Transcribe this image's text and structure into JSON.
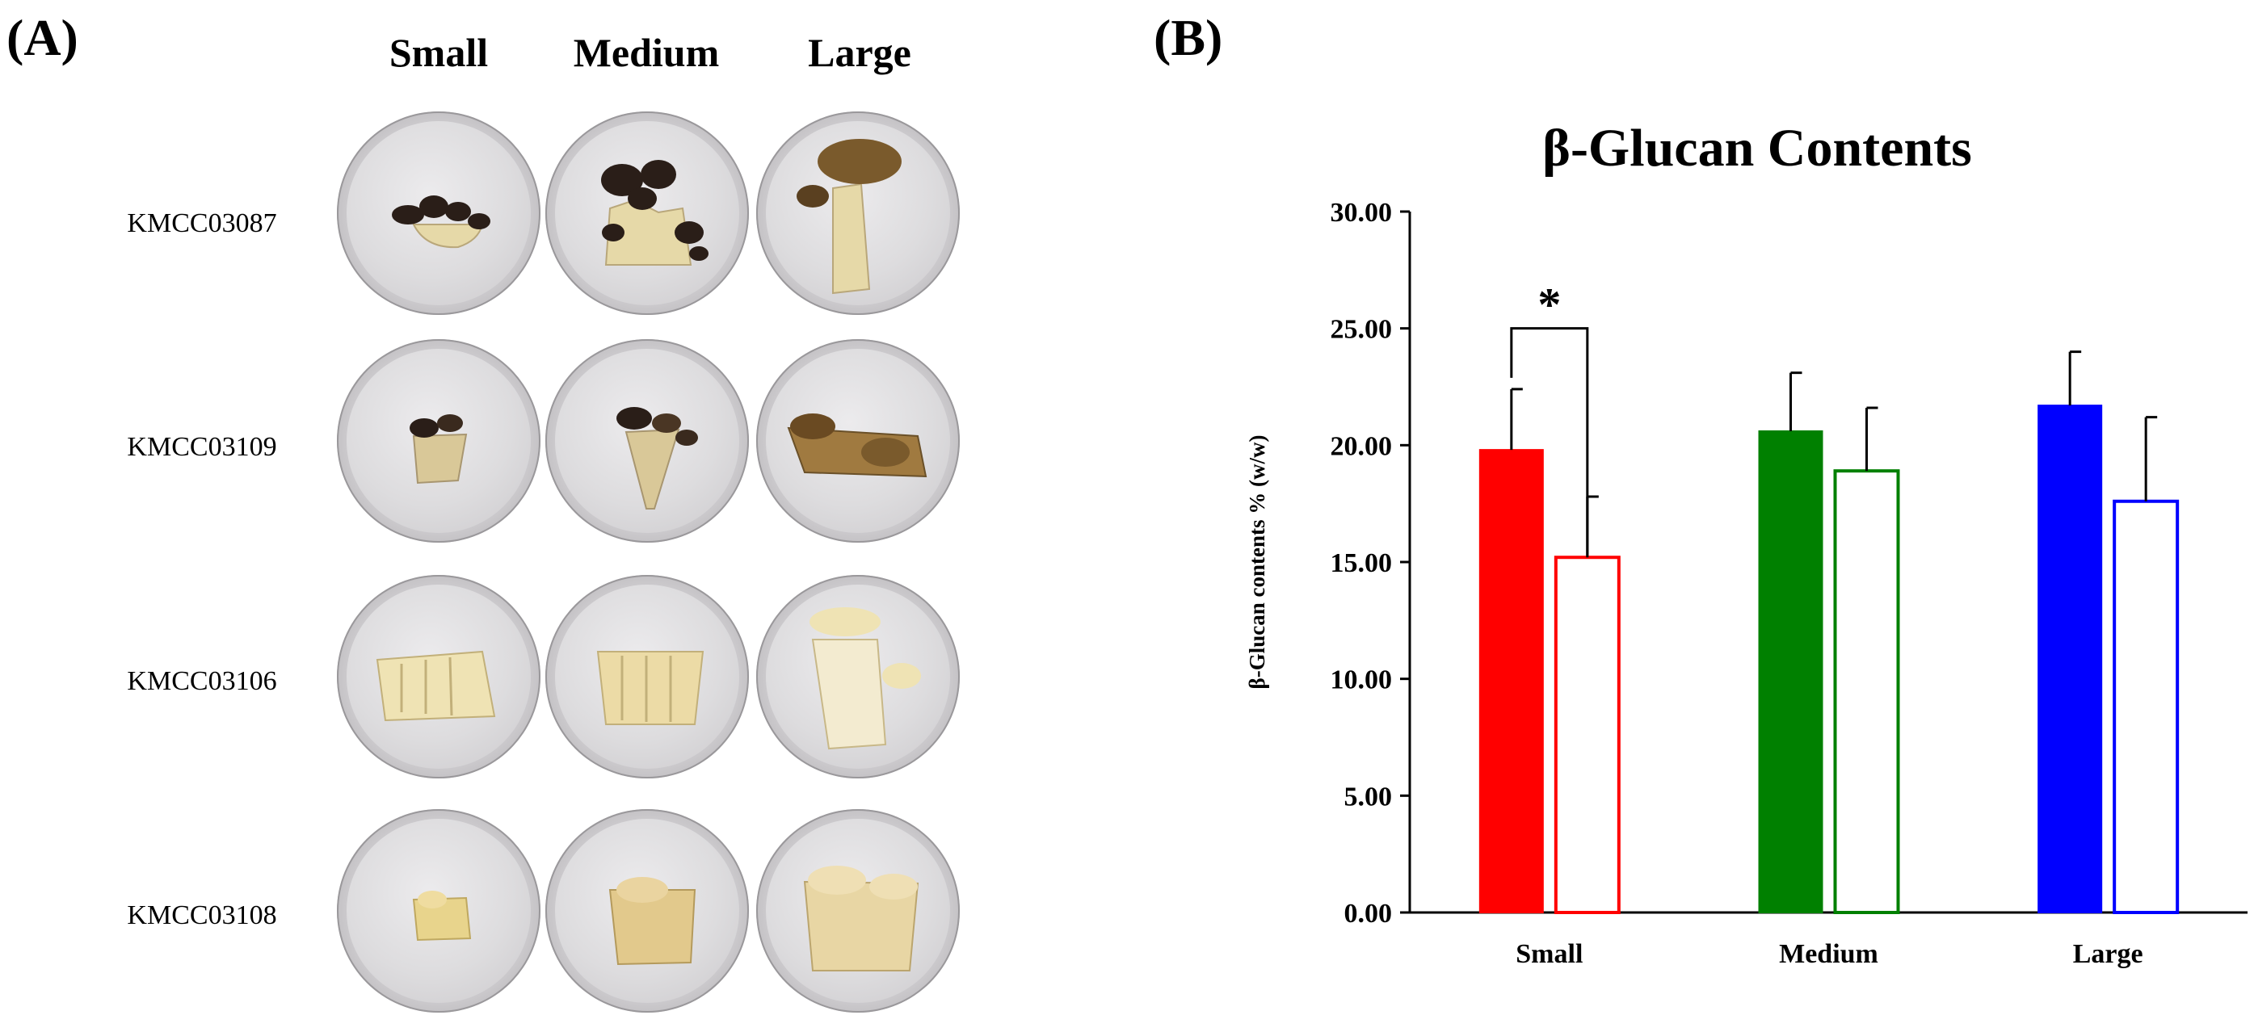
{
  "panels": {
    "a_label": "(A)",
    "b_label": "(B)"
  },
  "photo_grid": {
    "columns": [
      "Small",
      "Medium",
      "Large"
    ],
    "rows": [
      "KMCC03087",
      "KMCC03109",
      "KMCC03106",
      "KMCC03108"
    ],
    "specimen_colors": {
      "dark_cap": "#2a1e18",
      "brown_cap": "#7a5a2c",
      "stem_cream": "#e6d9a8",
      "pale_cream": "#efe3b4",
      "yellow_cream": "#e8d48c"
    }
  },
  "chart_data": {
    "type": "bar",
    "title": "β-Glucan Contents",
    "xlabel": "",
    "ylabel": "β-Glucan contents % (w/w)",
    "ylim": [
      0,
      30
    ],
    "yticks": [
      "0.00",
      "5.00",
      "10.00",
      "15.00",
      "20.00",
      "25.00",
      "30.00"
    ],
    "categories": [
      "Small",
      "Medium",
      "Large"
    ],
    "series": [
      {
        "name": "filled",
        "style": "filled",
        "values": [
          19.8,
          20.6,
          21.7
        ],
        "errors": [
          2.6,
          2.5,
          2.3
        ]
      },
      {
        "name": "open",
        "style": "open",
        "values": [
          15.2,
          18.9,
          17.6
        ],
        "errors": [
          2.6,
          2.7,
          3.6
        ]
      }
    ],
    "category_colors": [
      "#ff0000",
      "#008000",
      "#0000ff"
    ],
    "significance": {
      "category": "Small",
      "label": "*"
    }
  }
}
